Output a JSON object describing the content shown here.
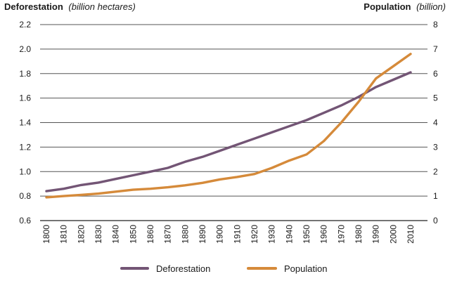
{
  "chart_data": {
    "type": "line",
    "title_left": {
      "bold": "Deforestation",
      "italic": "(billion hectares)"
    },
    "title_right": {
      "bold": "Population",
      "italic": "(billion)"
    },
    "x": [
      "1800",
      "1810",
      "1820",
      "1830",
      "1840",
      "1850",
      "1860",
      "1870",
      "1880",
      "1890",
      "1900",
      "1910",
      "1920",
      "1930",
      "1940",
      "1950",
      "1960",
      "1970",
      "1980",
      "1990",
      "2000",
      "2010"
    ],
    "y_left": {
      "range": [
        0.6,
        2.2
      ],
      "ticks": [
        "0.6",
        "0.8",
        "1.0",
        "1.2",
        "1.4",
        "1.6",
        "1.8",
        "2.0",
        "2.2"
      ]
    },
    "y_right": {
      "range": [
        0,
        8
      ],
      "ticks": [
        "0",
        "1",
        "2",
        "3",
        "4",
        "5",
        "6",
        "7",
        "8"
      ]
    },
    "grid": "horizontal",
    "legend_position": "bottom-center",
    "series": [
      {
        "name": "Deforestation",
        "axis": "left",
        "color": "#735575",
        "values": [
          0.84,
          0.86,
          0.89,
          0.91,
          0.94,
          0.97,
          1.0,
          1.03,
          1.08,
          1.12,
          1.17,
          1.22,
          1.27,
          1.32,
          1.37,
          1.42,
          1.48,
          1.54,
          1.61,
          1.69,
          1.75,
          1.81
        ]
      },
      {
        "name": "Population",
        "axis": "right",
        "color": "#D58A3A",
        "values": [
          0.95,
          1.0,
          1.05,
          1.1,
          1.18,
          1.26,
          1.3,
          1.36,
          1.44,
          1.54,
          1.68,
          1.78,
          1.9,
          2.15,
          2.45,
          2.7,
          3.25,
          4.0,
          4.85,
          5.8,
          6.3,
          6.8
        ]
      }
    ]
  }
}
